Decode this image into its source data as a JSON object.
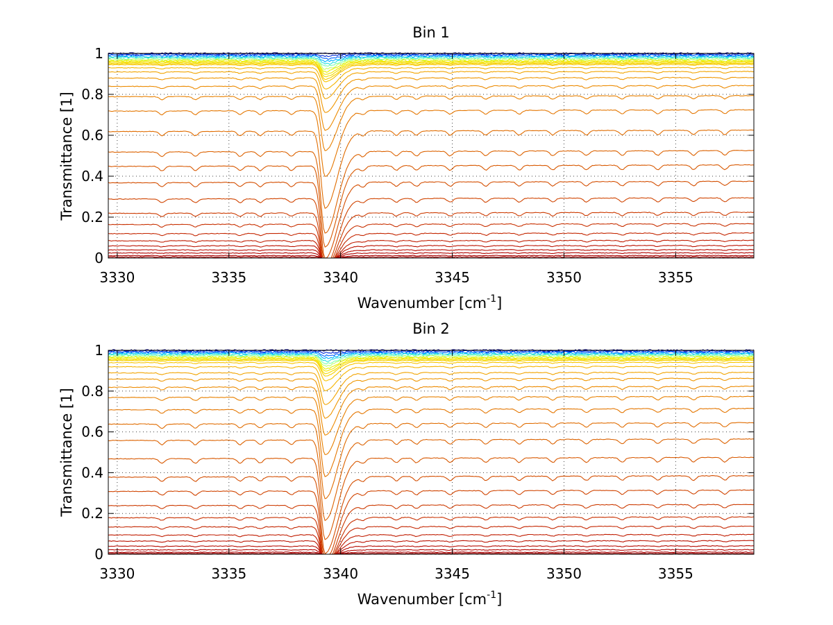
{
  "chart_data": [
    {
      "type": "line",
      "title": "Bin 1",
      "xlabel": "Wavenumber [cm",
      "xlabel_sup": "-1",
      "xlabel_tail": "]",
      "ylabel": "Transmittance [1]",
      "xlim": [
        3329.6,
        3358.5
      ],
      "ylim": [
        0,
        1
      ],
      "xticks": [
        3330,
        3335,
        3340,
        3345,
        3350,
        3355
      ],
      "xtick_labels": [
        "3330",
        "3335",
        "3340",
        "3345",
        "3350",
        "3355"
      ],
      "yticks": [
        0,
        0.2,
        0.4,
        0.6,
        0.8,
        1
      ],
      "ytick_labels": [
        "0",
        "0.2",
        "0.4",
        "0.6",
        "0.8",
        "1"
      ],
      "grid": true,
      "strong_line_center": 3339.3,
      "weak_line_centers": [
        3332.0,
        3333.5,
        3335.5,
        3336.4,
        3337.8,
        3341.0,
        3342.5,
        3343.4,
        3344.9,
        3346.5,
        3348.0,
        3349.5,
        3351.0,
        3352.6,
        3354.2,
        3355.8,
        3357.2
      ],
      "series_baselines": [
        1.0,
        0.995,
        0.99,
        0.985,
        0.98,
        0.975,
        0.97,
        0.965,
        0.96,
        0.955,
        0.95,
        0.945,
        0.93,
        0.91,
        0.88,
        0.84,
        0.79,
        0.72,
        0.62,
        0.52,
        0.45,
        0.37,
        0.29,
        0.22,
        0.165,
        0.12,
        0.085,
        0.06,
        0.04,
        0.025,
        0.012,
        0.005
      ],
      "series_colors": [
        "#00007f",
        "#0028d6",
        "#0064ff",
        "#00b4ff",
        "#2ae3e0",
        "#7fffb0",
        "#c4ff6a",
        "#e8f000",
        "#f2e600",
        "#f5dc00",
        "#f6d000",
        "#f7c400",
        "#f5b400",
        "#f2a400",
        "#ef9600",
        "#ec8a00",
        "#e88000",
        "#e47600",
        "#e06c00",
        "#dc6200",
        "#d85800",
        "#d44e00",
        "#d04400",
        "#cc3a00",
        "#c83000",
        "#c42600",
        "#c01c00",
        "#bb1200",
        "#b60a00",
        "#b00400",
        "#a80000",
        "#a00000"
      ]
    },
    {
      "type": "line",
      "title": "Bin 2",
      "xlabel": "Wavenumber [cm",
      "xlabel_sup": "-1",
      "xlabel_tail": "]",
      "ylabel": "Transmittance [1]",
      "xlim": [
        3329.6,
        3358.5
      ],
      "ylim": [
        0,
        1
      ],
      "xticks": [
        3330,
        3335,
        3340,
        3345,
        3350,
        3355
      ],
      "xtick_labels": [
        "3330",
        "3335",
        "3340",
        "3345",
        "3350",
        "3355"
      ],
      "yticks": [
        0,
        0.2,
        0.4,
        0.6,
        0.8,
        1
      ],
      "ytick_labels": [
        "0",
        "0.2",
        "0.4",
        "0.6",
        "0.8",
        "1"
      ],
      "grid": true,
      "strong_line_center": 3339.3,
      "weak_line_centers": [
        3332.0,
        3333.5,
        3335.5,
        3336.4,
        3337.8,
        3341.0,
        3342.5,
        3343.4,
        3344.9,
        3346.5,
        3348.0,
        3349.5,
        3351.0,
        3352.6,
        3354.2,
        3355.8,
        3357.2
      ],
      "series_baselines": [
        1.0,
        0.995,
        0.99,
        0.985,
        0.98,
        0.975,
        0.97,
        0.965,
        0.96,
        0.955,
        0.95,
        0.94,
        0.92,
        0.89,
        0.86,
        0.82,
        0.77,
        0.71,
        0.64,
        0.56,
        0.47,
        0.38,
        0.31,
        0.24,
        0.18,
        0.135,
        0.095,
        0.065,
        0.04,
        0.022,
        0.01,
        0.004
      ],
      "series_colors": [
        "#00007f",
        "#0028d6",
        "#0064ff",
        "#00b4ff",
        "#2ae3e0",
        "#7fffb0",
        "#c4ff6a",
        "#e8f000",
        "#f2e600",
        "#f5dc00",
        "#f6d000",
        "#f7c400",
        "#f5b400",
        "#f2a400",
        "#ef9600",
        "#ec8a00",
        "#e88000",
        "#e47600",
        "#e06c00",
        "#dc6200",
        "#d85800",
        "#d44e00",
        "#d04400",
        "#cc3a00",
        "#c83000",
        "#c42600",
        "#c01c00",
        "#bb1200",
        "#b60a00",
        "#b00400",
        "#a80000",
        "#a00000"
      ]
    }
  ]
}
